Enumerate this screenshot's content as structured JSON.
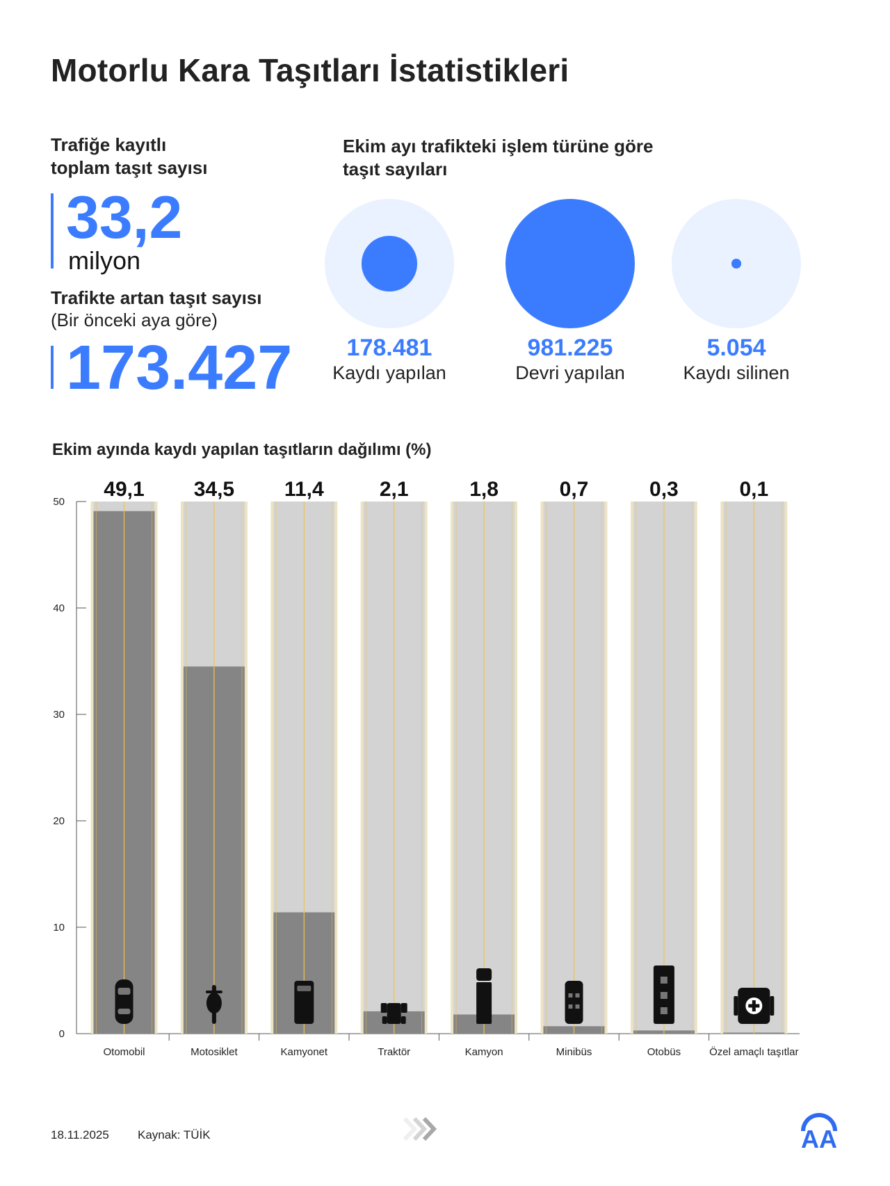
{
  "title": "Motorlu Kara Taşıtları İstatistikleri",
  "registered": {
    "label_line1": "Trafiğe kayıtlı",
    "label_line2": "toplam taşıt sayısı",
    "value": "33,2",
    "unit": "milyon"
  },
  "increase": {
    "label_line1": "Trafikte artan taşıt sayısı",
    "label_line2": "(Bir önceki aya göre)",
    "value": "173.427"
  },
  "transactions": {
    "title_line1": "Ekim ayı trafikteki işlem türüne göre",
    "title_line2": "taşıt sayıları",
    "items": [
      {
        "value": "178.481",
        "label": "Kaydı yapılan",
        "number": 178481
      },
      {
        "value": "981.225",
        "label": "Devri yapılan",
        "number": 981225
      },
      {
        "value": "5.054",
        "label": "Kaydı silinen",
        "number": 5054
      }
    ],
    "colors": {
      "outer": "#eaf1ff",
      "inner": "#3b7cff"
    }
  },
  "chart_data": {
    "type": "bar",
    "title": "Ekim ayında kaydı yapılan taşıtların dağılımı (%)",
    "categories": [
      "Otomobil",
      "Motosiklet",
      "Kamyonet",
      "Traktör",
      "Kamyon",
      "Minibüs",
      "Otobüs",
      "Özel amaçlı taşıtlar"
    ],
    "values": [
      49.1,
      34.5,
      11.4,
      2.1,
      1.8,
      0.7,
      0.3,
      0.1
    ],
    "value_labels": [
      "49,1",
      "34,5",
      "11,4",
      "2,1",
      "1,8",
      "0,7",
      "0,3",
      "0,1"
    ],
    "icons": [
      "car-icon",
      "motorcycle-icon",
      "pickup-icon",
      "tractor-icon",
      "truck-icon",
      "minibus-icon",
      "bus-icon",
      "special-vehicle-icon"
    ],
    "ylim": [
      0,
      50
    ],
    "yticks": [
      0,
      10,
      20,
      30,
      40,
      50
    ],
    "grid": false,
    "colors": {
      "track": "#d3d3d3",
      "fill": "#858585",
      "edge": "#ece3c4",
      "lane": "#f2c14e"
    }
  },
  "footer": {
    "date": "18.11.2025",
    "source": "Kaynak: TÜİK",
    "logo": "AA"
  }
}
